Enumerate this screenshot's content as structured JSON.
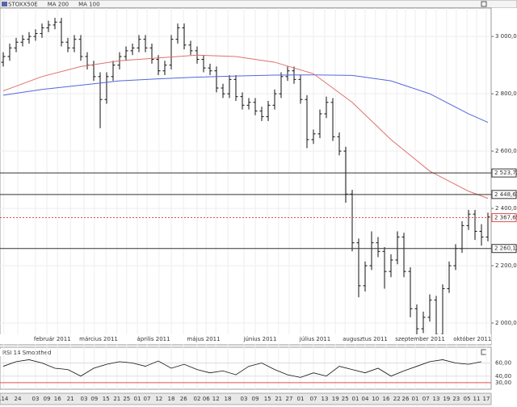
{
  "chart_data": {
    "type": "ohlc",
    "legend": [
      "STOXX50E",
      "MA 200",
      "MA 100"
    ],
    "xlim": [
      -0.5,
      75.5
    ],
    "ylim": [
      1924,
      3099
    ],
    "yticks": [
      {
        "value": 3000,
        "label": "3 000,00"
      },
      {
        "value": 2800,
        "label": "2 800,00"
      },
      {
        "value": 2600,
        "label": "2 600,00"
      },
      {
        "value": 2400,
        "label": "2 400,00"
      },
      {
        "value": 2200,
        "label": "2 200,00"
      },
      {
        "value": 2000,
        "label": "2 000,00"
      }
    ],
    "levels": [
      {
        "value": 2523.72,
        "label": "2 523,72",
        "color": "#333333",
        "dashed": false
      },
      {
        "value": 2448.61,
        "label": "2 448,61",
        "color": "#333333",
        "dashed": false
      },
      {
        "value": 2367.65,
        "label": "2 367,65",
        "color": "#e05050",
        "dashed": true
      },
      {
        "value": 2260.12,
        "label": "2 260,12",
        "color": "#333333",
        "dashed": false
      }
    ],
    "series": [
      {
        "name": "STOXX50E",
        "color": "#111111",
        "values": [
          [
            2910,
            2945,
            2895,
            2930
          ],
          [
            2930,
            2975,
            2915,
            2960
          ],
          [
            2960,
            2995,
            2945,
            2980
          ],
          [
            2980,
            3005,
            2965,
            2990
          ],
          [
            2990,
            3015,
            2975,
            3000
          ],
          [
            3000,
            3025,
            2985,
            3010
          ],
          [
            3010,
            3045,
            2995,
            3030
          ],
          [
            3030,
            3055,
            3015,
            3040
          ],
          [
            3040,
            3065,
            3025,
            3050
          ],
          [
            3050,
            3065,
            2965,
            2980
          ],
          [
            2980,
            2995,
            2945,
            2960
          ],
          [
            2960,
            3005,
            2945,
            2990
          ],
          [
            2990,
            3005,
            2915,
            2930
          ],
          [
            2930,
            2945,
            2885,
            2900
          ],
          [
            2900,
            2915,
            2845,
            2860
          ],
          [
            2860,
            2875,
            2680,
            2780
          ],
          [
            2780,
            2875,
            2765,
            2860
          ],
          [
            2860,
            2915,
            2845,
            2900
          ],
          [
            2900,
            2945,
            2885,
            2930
          ],
          [
            2930,
            2965,
            2915,
            2950
          ],
          [
            2950,
            2975,
            2935,
            2960
          ],
          [
            2960,
            3005,
            2945,
            2990
          ],
          [
            2990,
            3005,
            2945,
            2960
          ],
          [
            2960,
            2975,
            2905,
            2920
          ],
          [
            2920,
            2935,
            2865,
            2880
          ],
          [
            2880,
            2915,
            2865,
            2900
          ],
          [
            2900,
            3005,
            2885,
            2990
          ],
          [
            2990,
            3045,
            2975,
            3030
          ],
          [
            3030,
            3045,
            2955,
            2970
          ],
          [
            2970,
            2985,
            2935,
            2950
          ],
          [
            2950,
            2965,
            2905,
            2920
          ],
          [
            2920,
            2935,
            2875,
            2890
          ],
          [
            2890,
            2905,
            2865,
            2880
          ],
          [
            2880,
            2895,
            2805,
            2820
          ],
          [
            2820,
            2835,
            2785,
            2800
          ],
          [
            2800,
            2865,
            2785,
            2850
          ],
          [
            2850,
            2865,
            2775,
            2790
          ],
          [
            2790,
            2805,
            2745,
            2760
          ],
          [
            2760,
            2785,
            2745,
            2770
          ],
          [
            2770,
            2785,
            2725,
            2740
          ],
          [
            2740,
            2755,
            2705,
            2720
          ],
          [
            2720,
            2775,
            2705,
            2760
          ],
          [
            2760,
            2815,
            2745,
            2800
          ],
          [
            2800,
            2875,
            2785,
            2860
          ],
          [
            2860,
            2895,
            2845,
            2880
          ],
          [
            2880,
            2895,
            2835,
            2850
          ],
          [
            2850,
            2865,
            2765,
            2780
          ],
          [
            2780,
            2795,
            2610,
            2640
          ],
          [
            2640,
            2675,
            2625,
            2660
          ],
          [
            2660,
            2745,
            2645,
            2730
          ],
          [
            2730,
            2790,
            2715,
            2770
          ],
          [
            2770,
            2785,
            2635,
            2650
          ],
          [
            2650,
            2665,
            2585,
            2600
          ],
          [
            2600,
            2615,
            2420,
            2450
          ],
          [
            2450,
            2465,
            2250,
            2280
          ],
          [
            2280,
            2295,
            2090,
            2130
          ],
          [
            2130,
            2215,
            2110,
            2200
          ],
          [
            2200,
            2320,
            2185,
            2280
          ],
          [
            2280,
            2300,
            2230,
            2250
          ],
          [
            2250,
            2265,
            2120,
            2180
          ],
          [
            2180,
            2240,
            2160,
            2220
          ],
          [
            2220,
            2320,
            2205,
            2300
          ],
          [
            2300,
            2315,
            2160,
            2180
          ],
          [
            2180,
            2195,
            2020,
            2050
          ],
          [
            2050,
            2065,
            1950,
            1980
          ],
          [
            1980,
            2040,
            1965,
            2020
          ],
          [
            2020,
            2100,
            2005,
            2080
          ],
          [
            2080,
            2095,
            1935,
            1960
          ],
          [
            1960,
            2135,
            1945,
            2120
          ],
          [
            2120,
            2215,
            2105,
            2200
          ],
          [
            2200,
            2275,
            2185,
            2260
          ],
          [
            2260,
            2355,
            2245,
            2340
          ],
          [
            2340,
            2395,
            2325,
            2380
          ],
          [
            2380,
            2395,
            2290,
            2320
          ],
          [
            2320,
            2345,
            2270,
            2300
          ],
          [
            2300,
            2385,
            2285,
            2370
          ]
        ]
      },
      {
        "name": "MA 200",
        "color": "#5566dd",
        "x": [
          0,
          6,
          12,
          18,
          24,
          30,
          36,
          42,
          48,
          54,
          60,
          66,
          72,
          75
        ],
        "values": [
          2795,
          2815,
          2830,
          2845,
          2852,
          2858,
          2862,
          2865,
          2866,
          2864,
          2845,
          2800,
          2730,
          2700
        ]
      },
      {
        "name": "MA 100",
        "color": "#e07070",
        "x": [
          0,
          6,
          12,
          18,
          24,
          30,
          36,
          42,
          48,
          54,
          60,
          66,
          72,
          75
        ],
        "values": [
          2810,
          2860,
          2895,
          2915,
          2925,
          2935,
          2930,
          2910,
          2870,
          2770,
          2640,
          2530,
          2460,
          2435
        ]
      }
    ],
    "rsi": {
      "title": "RSI 14 Smoothed",
      "color": "#111111",
      "ylim": [
        20,
        84
      ],
      "yticks": [
        {
          "value": 60,
          "label": "60,00"
        },
        {
          "value": 40,
          "label": "40,00"
        },
        {
          "value": 30,
          "label": "30,00"
        }
      ],
      "x": [
        0,
        2,
        4,
        6,
        8,
        10,
        12,
        14,
        16,
        18,
        20,
        22,
        24,
        26,
        28,
        30,
        32,
        34,
        36,
        38,
        40,
        42,
        44,
        46,
        48,
        50,
        52,
        54,
        56,
        58,
        60,
        62,
        64,
        66,
        68,
        70,
        72,
        74
      ],
      "values": [
        55,
        62,
        65,
        60,
        52,
        50,
        40,
        52,
        58,
        62,
        60,
        55,
        63,
        52,
        58,
        50,
        45,
        48,
        42,
        55,
        60,
        50,
        42,
        38,
        45,
        40,
        55,
        50,
        45,
        52,
        40,
        48,
        55,
        62,
        65,
        60,
        58,
        62
      ]
    },
    "month_labels": [
      {
        "value": 7.6,
        "label": "február 2011"
      },
      {
        "value": 14.75,
        "label": "március 2011"
      },
      {
        "value": 23.25,
        "label": "április 2011"
      },
      {
        "value": 31,
        "label": "május 2011"
      },
      {
        "value": 39.75,
        "label": "június 2011"
      },
      {
        "value": 48.25,
        "label": "július 2011"
      },
      {
        "value": 56,
        "label": "augusztus 2011"
      },
      {
        "value": 64.5,
        "label": "szeptember 2011"
      },
      {
        "value": 72.6,
        "label": "október 2011"
      }
    ],
    "xticks": [
      {
        "value": 0.1,
        "label": ".14"
      },
      {
        "value": 2.25,
        "label": "24"
      },
      {
        "value": 5,
        "label": "03"
      },
      {
        "value": 6.75,
        "label": "09"
      },
      {
        "value": 8.4,
        "label": "16"
      },
      {
        "value": 10.4,
        "label": "21"
      },
      {
        "value": 12.5,
        "label": "03"
      },
      {
        "value": 14.1,
        "label": "09"
      },
      {
        "value": 15.9,
        "label": "15"
      },
      {
        "value": 17.6,
        "label": "21"
      },
      {
        "value": 19.1,
        "label": "25"
      },
      {
        "value": 20.75,
        "label": "01"
      },
      {
        "value": 22.25,
        "label": "07"
      },
      {
        "value": 24.1,
        "label": "12"
      },
      {
        "value": 26,
        "label": "18"
      },
      {
        "value": 27.9,
        "label": "26"
      },
      {
        "value": 30,
        "label": "02"
      },
      {
        "value": 31.4,
        "label": "06"
      },
      {
        "value": 32.9,
        "label": "12"
      },
      {
        "value": 34.75,
        "label": "18"
      },
      {
        "value": 37.25,
        "label": "03"
      },
      {
        "value": 39,
        "label": "09"
      },
      {
        "value": 40.9,
        "label": "15"
      },
      {
        "value": 42.6,
        "label": "21"
      },
      {
        "value": 44.25,
        "label": "27"
      },
      {
        "value": 46,
        "label": "01"
      },
      {
        "value": 48,
        "label": "07"
      },
      {
        "value": 49.75,
        "label": "13"
      },
      {
        "value": 51.4,
        "label": "19"
      },
      {
        "value": 52.9,
        "label": "25"
      },
      {
        "value": 54.5,
        "label": "01"
      },
      {
        "value": 56,
        "label": "04"
      },
      {
        "value": 57.6,
        "label": "10"
      },
      {
        "value": 59.25,
        "label": "16"
      },
      {
        "value": 60.9,
        "label": "22"
      },
      {
        "value": 62.25,
        "label": "26"
      },
      {
        "value": 63.75,
        "label": "01"
      },
      {
        "value": 65.4,
        "label": "07"
      },
      {
        "value": 67,
        "label": "13"
      },
      {
        "value": 68.6,
        "label": "19"
      },
      {
        "value": 70.1,
        "label": "23"
      },
      {
        "value": 71.75,
        "label": "05"
      },
      {
        "value": 73.25,
        "label": "11"
      },
      {
        "value": 74.75,
        "label": "17"
      }
    ]
  }
}
